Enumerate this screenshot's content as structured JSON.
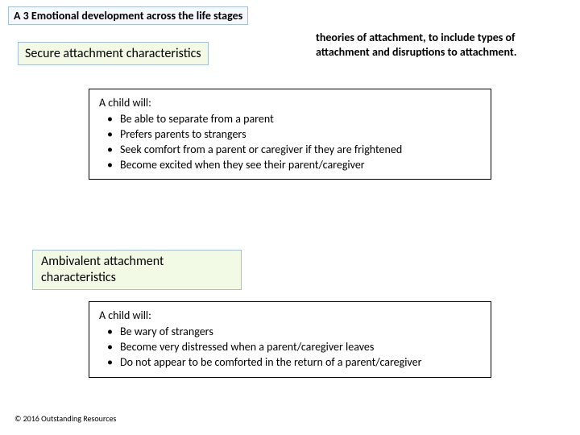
{
  "header": {
    "title": "A 3 Emotional development across the life stages"
  },
  "secure": {
    "label": "Secure attachment characteristics",
    "lead": "A child will:",
    "items": [
      "Be able to separate from a parent",
      "Prefers parents to strangers",
      "Seek comfort from a parent or caregiver if they are frightened",
      "Become excited when they see their parent/caregiver"
    ]
  },
  "right_note": "theories of attachment, to include types of attachment and disruptions to attachment.",
  "ambivalent": {
    "label": "Ambivalent attachment characteristics",
    "lead": "A child will:",
    "items": [
      "Be wary of strangers",
      "Become very distressed when a parent/caregiver leaves",
      "Do not appear to be comforted in the return of a parent/caregiver"
    ]
  },
  "footer": "© 2016 Outstanding Resources",
  "colors": {
    "box_border": "#a6bfd9",
    "green_bg": "#f2fae6",
    "blue_bg": "#f5f9fd"
  }
}
